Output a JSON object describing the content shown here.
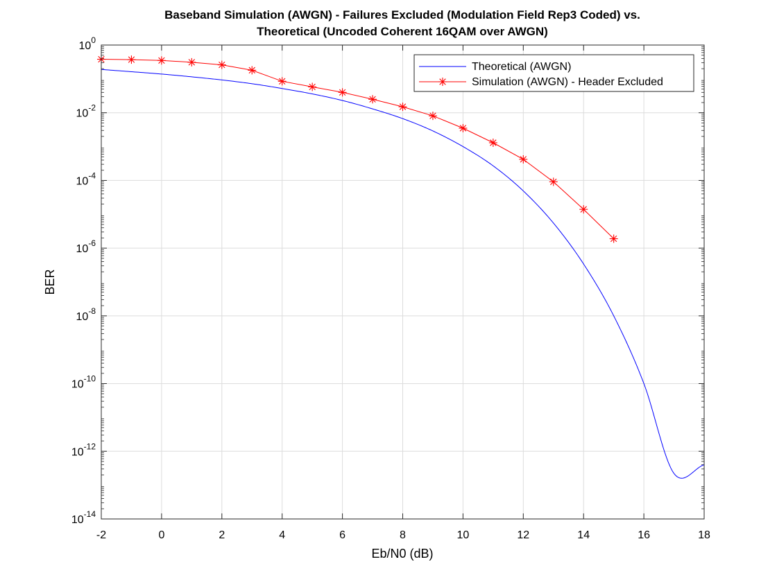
{
  "chart_data": {
    "type": "line",
    "title": [
      "Baseband Simulation (AWGN) - Failures Excluded (Modulation Field Rep3 Coded) vs.",
      "Theoretical (Uncoded Coherent 16QAM over AWGN)"
    ],
    "xlabel": "Eb/N0 (dB)",
    "ylabel": "BER",
    "xlim": [
      -2,
      18
    ],
    "ylim": [
      1e-14,
      1
    ],
    "yscale": "log",
    "grid": true,
    "legend_position": "top-right",
    "x_ticks": [
      -2,
      0,
      2,
      4,
      6,
      8,
      10,
      12,
      14,
      16,
      18
    ],
    "y_tick_exponents": [
      0,
      -2,
      -4,
      -6,
      -8,
      -10,
      -12,
      -14
    ],
    "series": [
      {
        "name": "Theoretical (AWGN)",
        "color": "#0000ff",
        "marker": "none",
        "x": [
          -2,
          -1,
          0,
          1,
          2,
          3,
          4,
          5,
          6,
          7,
          8,
          9,
          10,
          11,
          12,
          13,
          14,
          15,
          16,
          17,
          18
        ],
        "y": [
          0.19,
          0.163,
          0.139,
          0.115,
          0.093,
          0.072,
          0.052,
          0.036,
          0.023,
          0.013,
          0.0067,
          0.0029,
          0.001,
          0.00027,
          4.9e-05,
          5.5e-06,
          3.4e-07,
          1e-08,
          1e-10,
          2.2e-13,
          4e-13
        ]
      },
      {
        "name": "Simulation (AWGN) - Header Excluded",
        "color": "#ff0000",
        "marker": "asterisk",
        "x": [
          -2,
          -1,
          0,
          1,
          2,
          3,
          4,
          5,
          6,
          7,
          8,
          9,
          10,
          11,
          12,
          13,
          14,
          15
        ],
        "y": [
          0.38,
          0.37,
          0.35,
          0.31,
          0.26,
          0.18,
          0.085,
          0.058,
          0.04,
          0.025,
          0.015,
          0.0081,
          0.0035,
          0.0013,
          0.00042,
          9.1e-05,
          1.4e-05,
          1.9e-06
        ]
      }
    ]
  }
}
